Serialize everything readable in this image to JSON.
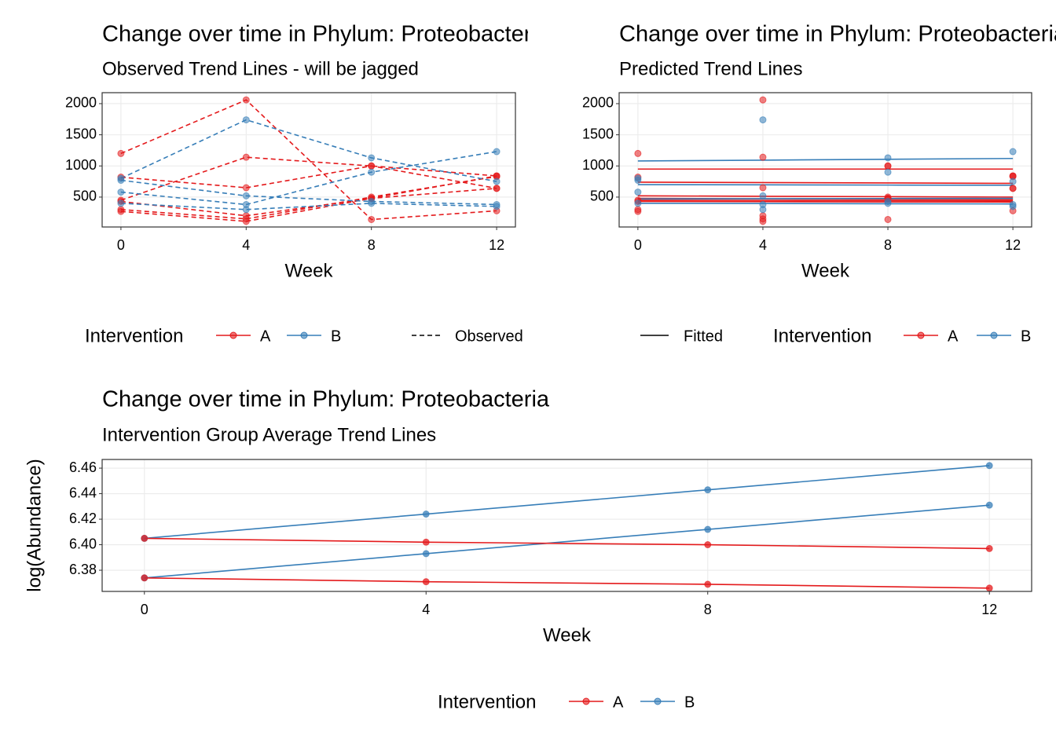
{
  "chart_data": [
    {
      "type": "line",
      "title": "Change over time in Phylum: Proteobacteria",
      "subtitle": "Observed Trend Lines - will be jagged",
      "xlabel": "Week",
      "x": [
        0,
        4,
        8,
        12
      ],
      "xlim": [
        -0.6,
        12.6
      ],
      "xticks": [
        0,
        4,
        8,
        12
      ],
      "ylim": [
        20,
        2176
      ],
      "yticks": [
        500,
        1000,
        1500,
        2000
      ],
      "grid": true,
      "linestyle": "dashed",
      "linetype_legend": "Observed",
      "legend": {
        "title": "Intervention",
        "entries": [
          {
            "name": "A",
            "color": "#e41a1c"
          },
          {
            "name": "B",
            "color": "#377eb8"
          }
        ]
      },
      "series": [
        {
          "color": "#e41a1c",
          "values": [
            1200,
            2060,
            140,
            280
          ]
        },
        {
          "color": "#e41a1c",
          "values": [
            450,
            1140,
            1000,
            840
          ]
        },
        {
          "color": "#e41a1c",
          "values": [
            820,
            650,
            1000,
            640
          ]
        },
        {
          "color": "#e41a1c",
          "values": [
            300,
            150,
            500,
            830
          ]
        },
        {
          "color": "#e41a1c",
          "values": [
            270,
            110,
            480,
            640
          ]
        },
        {
          "color": "#e41a1c",
          "values": [
            430,
            200,
            480,
            840
          ]
        },
        {
          "color": "#377eb8",
          "values": [
            800,
            1740,
            1130,
            750
          ]
        },
        {
          "color": "#377eb8",
          "values": [
            770,
            520,
            430,
            380
          ]
        },
        {
          "color": "#377eb8",
          "values": [
            580,
            380,
            900,
            1230
          ]
        },
        {
          "color": "#377eb8",
          "values": [
            400,
            300,
            400,
            350
          ]
        }
      ]
    },
    {
      "type": "line",
      "title": "Change over time in Phylum: Proteobacteria",
      "subtitle": "Predicted Trend Lines",
      "xlabel": "Week",
      "x": [
        0,
        4,
        8,
        12
      ],
      "xlim": [
        -0.6,
        12.6
      ],
      "xticks": [
        0,
        4,
        8,
        12
      ],
      "ylim": [
        20,
        2176
      ],
      "yticks": [
        500,
        1000,
        1500,
        2000
      ],
      "grid": true,
      "linestyle": "solid",
      "linetype_legend": "Fitted",
      "legend": {
        "title": "Intervention",
        "entries": [
          {
            "name": "A",
            "color": "#e41a1c"
          },
          {
            "name": "B",
            "color": "#377eb8"
          }
        ]
      },
      "series": [
        {
          "color": "#e41a1c",
          "values": [
            1200,
            2060,
            140,
            280
          ],
          "fitted": [
            950,
            950,
            950,
            950
          ]
        },
        {
          "color": "#e41a1c",
          "values": [
            450,
            1140,
            1000,
            840
          ],
          "fitted": [
            740,
            733,
            727,
            720
          ]
        },
        {
          "color": "#e41a1c",
          "values": [
            820,
            650,
            1000,
            640
          ],
          "fitted": [
            520,
            513,
            507,
            500
          ]
        },
        {
          "color": "#e41a1c",
          "values": [
            300,
            150,
            500,
            830
          ],
          "fitted": [
            480,
            473,
            467,
            460
          ]
        },
        {
          "color": "#e41a1c",
          "values": [
            270,
            110,
            480,
            640
          ],
          "fitted": [
            430,
            427,
            423,
            420
          ]
        },
        {
          "color": "#e41a1c",
          "values": [
            430,
            200,
            480,
            840
          ],
          "fitted": [
            450,
            447,
            443,
            440
          ]
        },
        {
          "color": "#377eb8",
          "values": [
            800,
            1740,
            1130,
            750
          ],
          "fitted": [
            1080,
            1093,
            1107,
            1120
          ]
        },
        {
          "color": "#377eb8",
          "values": [
            770,
            520,
            430,
            380
          ],
          "fitted": [
            700,
            697,
            693,
            690
          ]
        },
        {
          "color": "#377eb8",
          "values": [
            580,
            380,
            900,
            1230
          ],
          "fitted": [
            470,
            473,
            477,
            480
          ]
        },
        {
          "color": "#377eb8",
          "values": [
            400,
            300,
            400,
            350
          ],
          "fitted": [
            400,
            397,
            393,
            390
          ]
        }
      ]
    },
    {
      "type": "line",
      "title": "Change over time in Phylum: Proteobacteria",
      "subtitle": "Intervention Group Average Trend Lines",
      "xlabel": "Week",
      "ylabel": "log(Abundance)",
      "x": [
        0,
        4,
        8,
        12
      ],
      "xlim": [
        -0.6,
        12.6
      ],
      "xticks": [
        0,
        4,
        8,
        12
      ],
      "ylim": [
        6.3634,
        6.4668
      ],
      "yticks": [
        6.38,
        {
          "value": 6.4,
          "label": "6.40"
        },
        6.42,
        6.44,
        6.46
      ],
      "grid": true,
      "linestyle": "solid",
      "legend": {
        "title": "Intervention",
        "entries": [
          {
            "name": "A",
            "color": "#e41a1c"
          },
          {
            "name": "B",
            "color": "#377eb8"
          }
        ]
      },
      "series": [
        {
          "color": "#377eb8",
          "values": [
            6.405,
            6.424,
            6.443,
            6.462
          ]
        },
        {
          "color": "#377eb8",
          "values": [
            6.374,
            6.393,
            6.412,
            6.431
          ]
        },
        {
          "color": "#e41a1c",
          "values": [
            6.405,
            6.402,
            6.4,
            6.397
          ]
        },
        {
          "color": "#e41a1c",
          "values": [
            6.374,
            6.371,
            6.369,
            6.366
          ]
        }
      ]
    }
  ]
}
